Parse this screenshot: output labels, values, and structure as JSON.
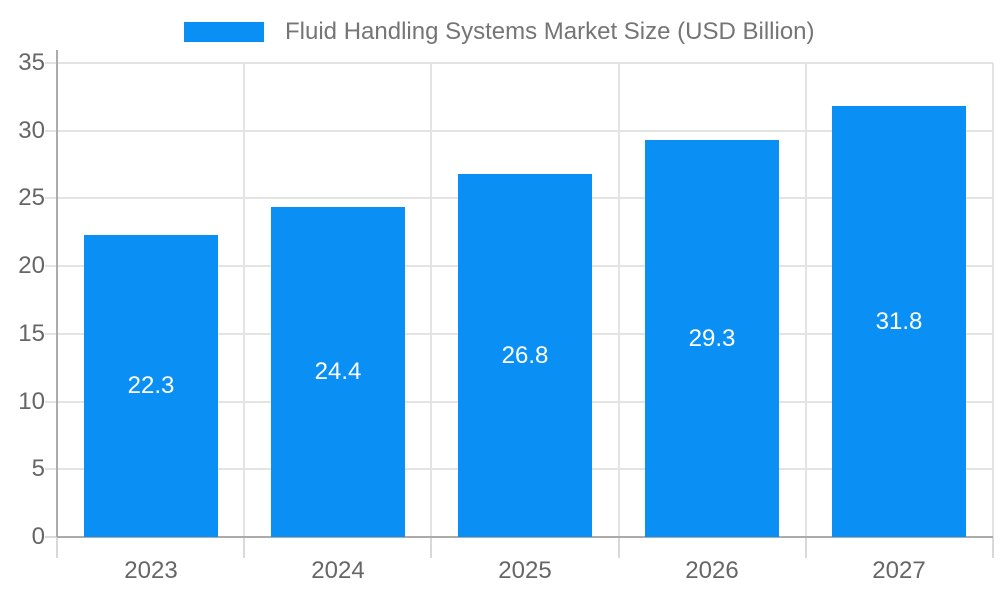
{
  "legend": {
    "swatch_color": "#0a90f5"
  },
  "chart_data": {
    "type": "bar",
    "title": "Fluid Handling Systems Market Size (USD Billion)",
    "categories": [
      "2023",
      "2024",
      "2025",
      "2026",
      "2027"
    ],
    "values": [
      22.3,
      24.4,
      26.8,
      29.3,
      31.8
    ],
    "data_labels": [
      "22.3",
      "24.4",
      "26.8",
      "29.3",
      "31.8"
    ],
    "xlabel": "",
    "ylabel": "",
    "ylim": [
      0,
      35
    ],
    "yticks": [
      0,
      5,
      10,
      15,
      20,
      25,
      30,
      35
    ],
    "grid": true,
    "legend_position": "top",
    "bar_color": "#0a90f5",
    "data_label_color": "#ffffff",
    "axis_label_color": "#666666",
    "legend_text_color": "#757575",
    "gridline_color": "#e3e3e3",
    "axis_line_color": "#ababab"
  }
}
